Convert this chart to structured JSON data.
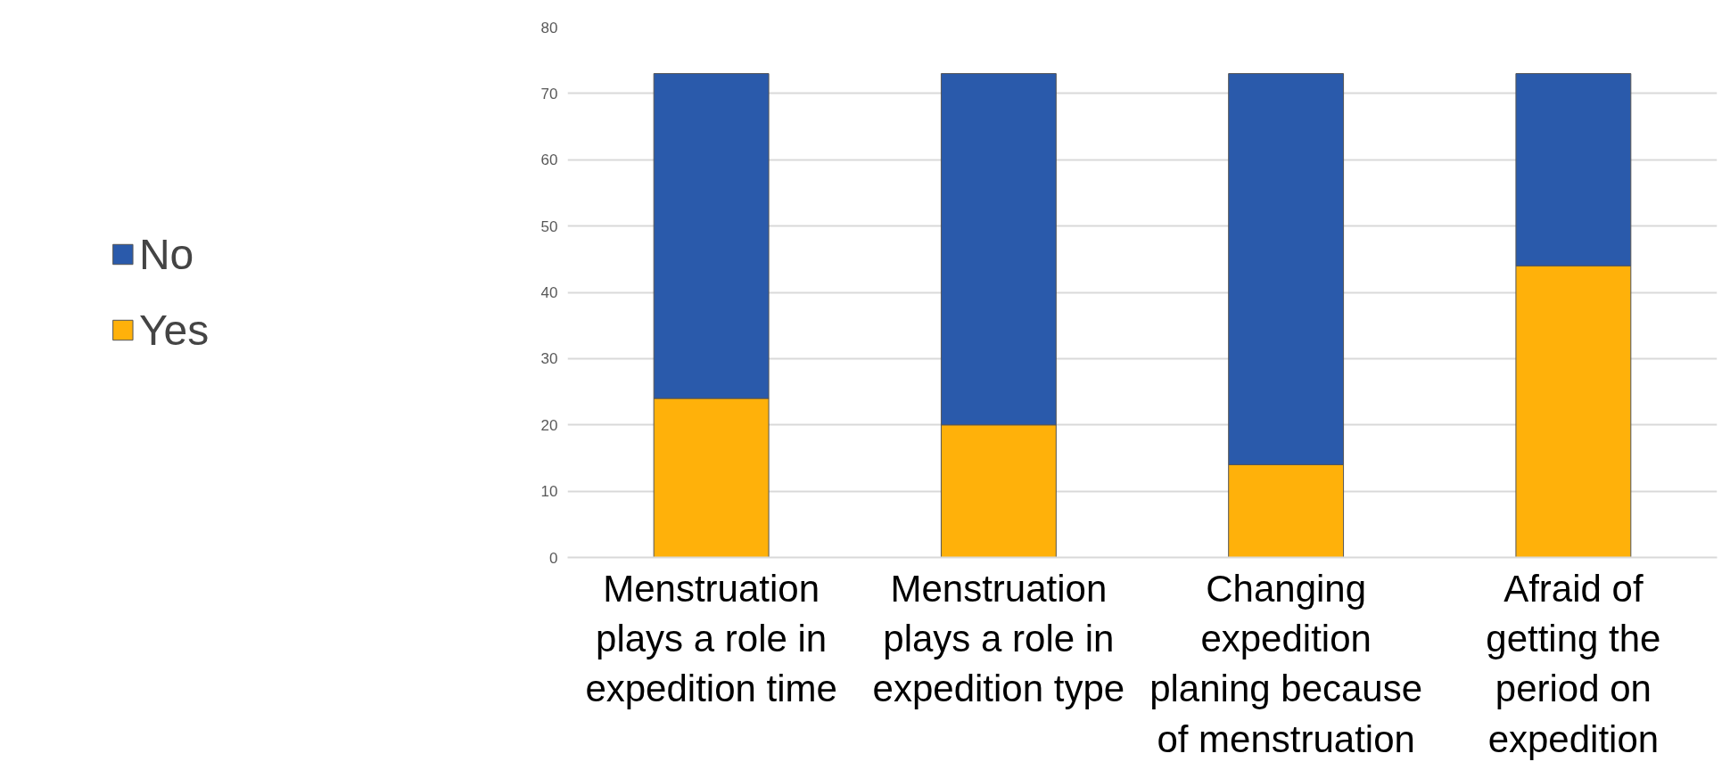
{
  "chart_data": {
    "type": "bar",
    "stacked": true,
    "categories": [
      "Menstruation plays a role in expedition time",
      "Menstruation plays a role in expedition type",
      "Changing expedition planing because of menstruation",
      "Afraid of getting the period on expedition"
    ],
    "series": [
      {
        "name": "Yes",
        "color": "#ffb10a",
        "values": [
          24,
          20,
          14,
          44
        ]
      },
      {
        "name": "No",
        "color": "#2a5aab",
        "values": [
          49,
          53,
          59,
          29
        ]
      }
    ],
    "ylim": [
      0,
      80
    ],
    "yticks": [
      0,
      10,
      20,
      30,
      40,
      50,
      60,
      70,
      80
    ],
    "grid": "y",
    "legend": "left"
  }
}
